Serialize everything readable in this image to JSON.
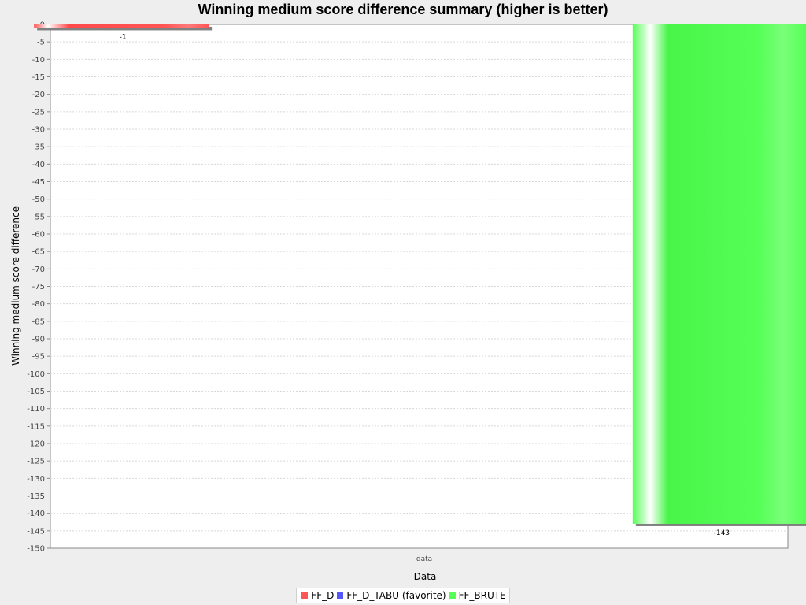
{
  "chart_data": {
    "type": "bar",
    "title": "Winning medium score difference summary (higher is better)",
    "xlabel": "Data",
    "ylabel": "Winning medium score difference",
    "categories": [
      "data"
    ],
    "series": [
      {
        "name": "FF_D",
        "values": [
          -1
        ],
        "value_labels": [
          "-1"
        ],
        "color": "#ff5555"
      },
      {
        "name": "FF_D_TABU (favorite)",
        "values": [
          0
        ],
        "value_labels": [
          ""
        ],
        "color": "#5555ff"
      },
      {
        "name": "FF_BRUTE",
        "values": [
          -143
        ],
        "value_labels": [
          "-143"
        ],
        "color": "#55ff55"
      }
    ],
    "ylim": [
      -150,
      0
    ],
    "y_ticks": [
      0,
      -5,
      -10,
      -15,
      -20,
      -25,
      -30,
      -35,
      -40,
      -45,
      -50,
      -55,
      -60,
      -65,
      -70,
      -75,
      -80,
      -85,
      -90,
      -95,
      -100,
      -105,
      -110,
      -115,
      -120,
      -125,
      -130,
      -135,
      -140,
      -145,
      -150
    ],
    "grid": true,
    "legend_position": "bottom"
  }
}
